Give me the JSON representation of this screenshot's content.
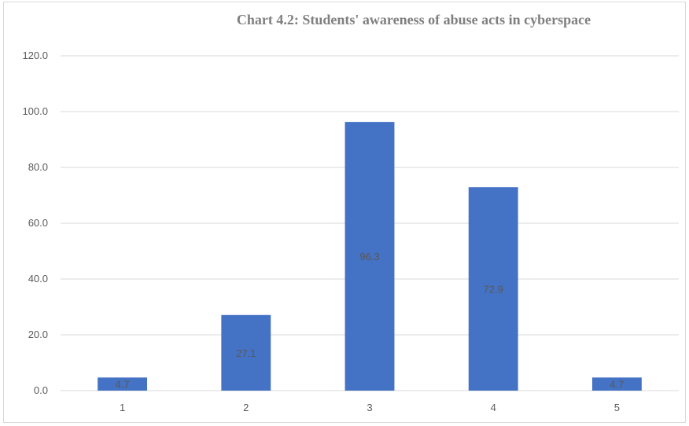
{
  "chart_data": {
    "type": "bar",
    "title": "Chart 4.2: Students' awareness of abuse acts in cyberspace",
    "categories": [
      "1",
      "2",
      "3",
      "4",
      "5"
    ],
    "values": [
      4.7,
      27.1,
      96.3,
      72.9,
      4.7
    ],
    "data_labels": [
      "4.7",
      "27.1",
      "96.3",
      "72.9",
      "4.7"
    ],
    "y_ticks": [
      "0.0",
      "20.0",
      "40.0",
      "60.0",
      "80.0",
      "100.0",
      "120.0"
    ],
    "ylim": [
      0,
      120
    ],
    "xlabel": "",
    "ylabel": "",
    "grid": true,
    "legend": "none",
    "colors": {
      "bar": "#4472c4",
      "grid": "#d9d9d9",
      "axis": "#d9d9d9"
    }
  }
}
